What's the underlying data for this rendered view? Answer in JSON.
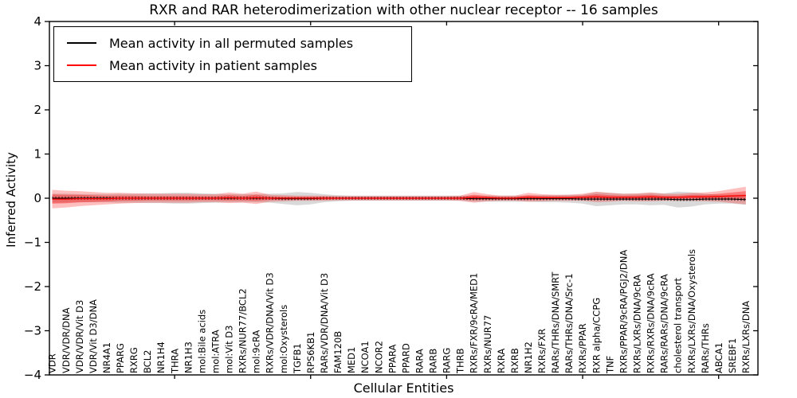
{
  "chart_data": {
    "type": "line",
    "title": "RXR and RAR heterodimerization with other nuclear receptor -- 16 samples",
    "xlabel": "Cellular Entities",
    "ylabel": "Inferred Activity",
    "ylim": [
      -4,
      4
    ],
    "yticks": [
      4,
      3,
      2,
      1,
      0,
      -1,
      -2,
      -3,
      -4
    ],
    "xtick_major_indices": [
      9,
      19,
      29,
      39,
      49
    ],
    "grid": false,
    "legend": {
      "position": "upper left",
      "items": [
        {
          "label": "Mean activity in all permuted samples",
          "color": "#000000"
        },
        {
          "label": "Mean activity in patient samples",
          "color": "#ff0000"
        }
      ]
    },
    "categories": [
      "VDR",
      "VDR/VDR/DNA",
      "VDR/VDR/Vit D3",
      "VDR/Vit D3/DNA",
      "NR4A1",
      "PPARG",
      "RXRG",
      "BCL2",
      "NR1H4",
      "THRA",
      "NR1H3",
      "mol:Bile acids",
      "mol:ATRA",
      "mol:Vit D3",
      "RXRs/NUR77/BCL2",
      "mol:9cRA",
      "RXRs/VDR/DNA/Vit D3",
      "mol:Oxysterols",
      "TGFB1",
      "RPS6KB1",
      "RARs/VDR/DNA/Vit D3",
      "FAM120B",
      "MED1",
      "NCOA1",
      "NCOR2",
      "PPARA",
      "PPARD",
      "RARA",
      "RARB",
      "RARG",
      "THRB",
      "RXRs/FXR/9cRA/MED1",
      "RXRs/NUR77",
      "RXRA",
      "RXRB",
      "NR1H2",
      "RXRs/FXR",
      "RARs/THRs/DNA/SMRT",
      "RARs/THRs/DNA/Src-1",
      "RXRs/PPAR",
      "RXR alpha/CCPG",
      "TNF",
      "RXRs/PPAR/9cRA/PGJ2/DNA",
      "RXRs/LXRs/DNA/9cRA",
      "RXRs/RXRs/DNA/9cRA",
      "RARs/RARs/DNA/9cRA",
      "cholesterol transport",
      "RXRs/LXRs/DNA/Oxysterols",
      "RARs/THRs",
      "ABCA1",
      "SREBF1",
      "RXRs/LXRs/DNA"
    ],
    "series": [
      {
        "name": "Mean activity in all permuted samples",
        "color": "#000000",
        "band_color": "#888888",
        "values": [
          0,
          0,
          0,
          0,
          0,
          0,
          0,
          0,
          0,
          0,
          0,
          0,
          0,
          0,
          0,
          0,
          0,
          -0.01,
          -0.01,
          -0.01,
          0,
          0,
          0,
          0,
          0,
          0,
          0,
          0,
          0,
          0,
          0,
          -0.01,
          -0.01,
          -0.01,
          -0.01,
          -0.01,
          -0.01,
          -0.01,
          -0.01,
          -0.02,
          -0.02,
          -0.02,
          -0.02,
          -0.02,
          -0.02,
          -0.02,
          -0.03,
          -0.03,
          -0.02,
          -0.02,
          -0.02,
          -0.03
        ],
        "band_halfwidth": [
          0.1,
          0.1,
          0.09,
          0.09,
          0.09,
          0.1,
          0.1,
          0.11,
          0.11,
          0.12,
          0.12,
          0.11,
          0.1,
          0.09,
          0.09,
          0.09,
          0.1,
          0.12,
          0.15,
          0.13,
          0.09,
          0.07,
          0.06,
          0.06,
          0.06,
          0.06,
          0.06,
          0.06,
          0.06,
          0.06,
          0.06,
          0.07,
          0.07,
          0.07,
          0.07,
          0.07,
          0.08,
          0.08,
          0.09,
          0.1,
          0.16,
          0.14,
          0.12,
          0.12,
          0.14,
          0.13,
          0.18,
          0.16,
          0.12,
          0.1,
          0.1,
          0.12
        ]
      },
      {
        "name": "Mean activity in patient samples",
        "color": "#ff0000",
        "band_color": "#ff0000",
        "inner_band_fraction": 0.5,
        "values": [
          -0.02,
          -0.02,
          -0.01,
          -0.01,
          -0.01,
          0,
          0,
          0,
          0,
          0,
          0,
          0,
          0,
          0.01,
          0,
          0.01,
          0,
          0,
          0,
          0,
          0,
          0,
          0,
          0,
          0,
          0,
          0,
          0,
          0,
          0,
          0,
          0.02,
          0.01,
          0,
          0,
          0.02,
          0.01,
          0.01,
          0.01,
          0.02,
          0.03,
          0.02,
          0.02,
          0.02,
          0.03,
          0.02,
          0.02,
          0.03,
          0.03,
          0.04,
          0.05,
          0.06
        ],
        "band_halfwidth": [
          0.21,
          0.19,
          0.17,
          0.15,
          0.13,
          0.12,
          0.11,
          0.1,
          0.1,
          0.1,
          0.1,
          0.09,
          0.09,
          0.12,
          0.1,
          0.14,
          0.08,
          0.07,
          0.06,
          0.06,
          0.06,
          0.05,
          0.05,
          0.05,
          0.05,
          0.05,
          0.05,
          0.05,
          0.05,
          0.05,
          0.06,
          0.12,
          0.08,
          0.06,
          0.06,
          0.1,
          0.08,
          0.07,
          0.07,
          0.08,
          0.12,
          0.1,
          0.08,
          0.09,
          0.1,
          0.08,
          0.08,
          0.09,
          0.1,
          0.12,
          0.16,
          0.2
        ]
      }
    ]
  },
  "colors": {
    "background": "#ffffff",
    "axis": "#000000",
    "permuted_band_fill": "#d9d9d9",
    "patient_band_fill": "#f08080"
  }
}
